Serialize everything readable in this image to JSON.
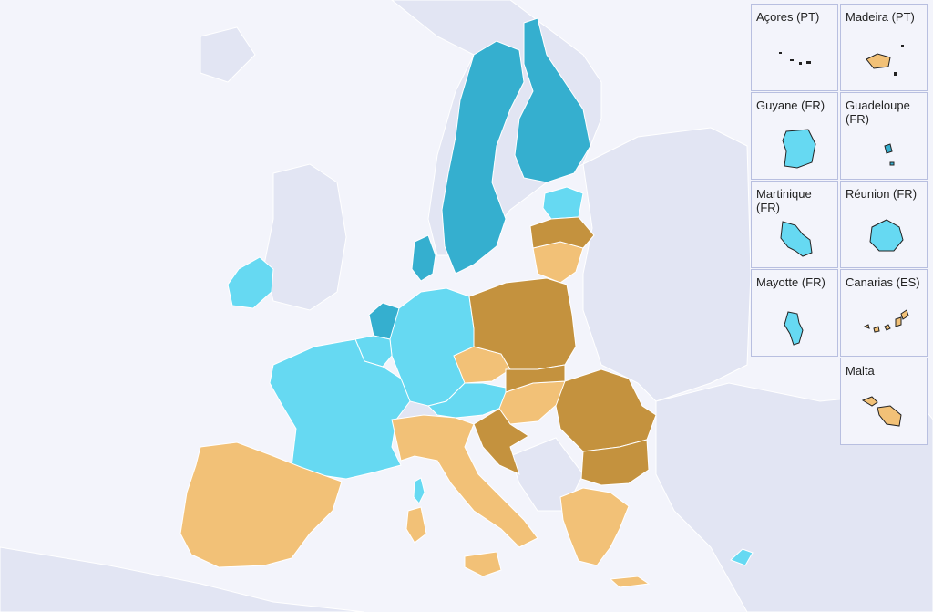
{
  "map": {
    "colors": {
      "sea": "#f3f4fb",
      "non_eu_land": "#e2e5f3",
      "border": "#ffffff",
      "dark_teal": "#35afcf",
      "light_cyan": "#66d9f2",
      "light_orange": "#f2c177",
      "dark_brown": "#c4923e"
    }
  },
  "insets": [
    {
      "name": "Açores (PT)",
      "color_key": "black"
    },
    {
      "name": "Madeira (PT)",
      "color_key": "light_orange"
    },
    {
      "name": "Guyane (FR)",
      "color_key": "light_cyan"
    },
    {
      "name": "Guadeloupe (FR)",
      "color_key": "dark_teal"
    },
    {
      "name": "Martinique (FR)",
      "color_key": "light_cyan"
    },
    {
      "name": "Réunion (FR)",
      "color_key": "light_cyan"
    },
    {
      "name": "Mayotte (FR)",
      "color_key": "light_cyan"
    },
    {
      "name": "Canarias (ES)",
      "color_key": "light_orange"
    },
    {
      "name": "Malta",
      "color_key": "light_orange"
    }
  ]
}
